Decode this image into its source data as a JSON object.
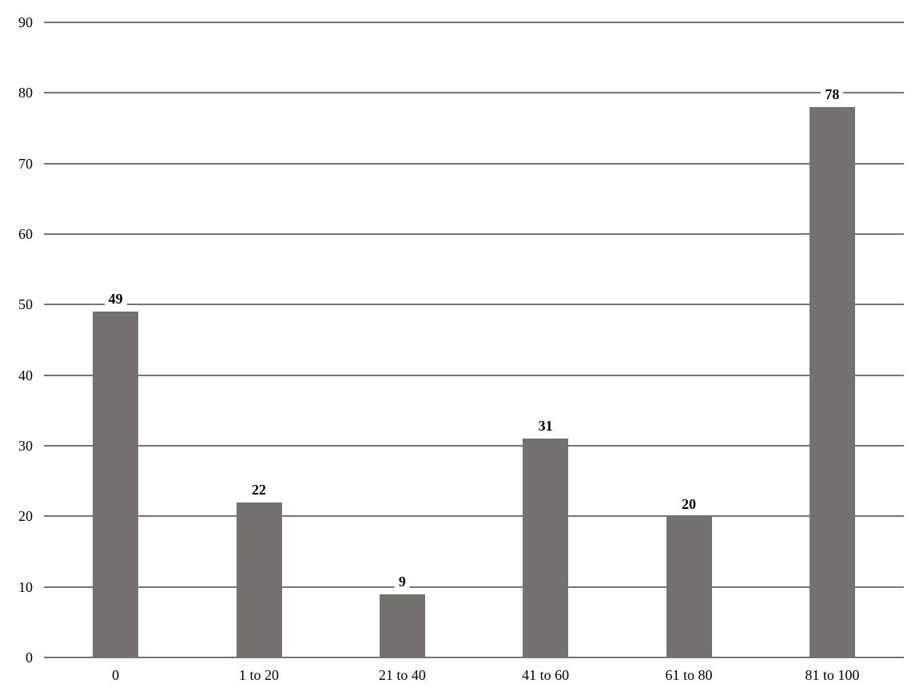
{
  "chart_data": {
    "type": "bar",
    "title": "",
    "xlabel": "",
    "ylabel": "",
    "categories": [
      "0",
      "1 to 20",
      "21 to 40",
      "41 to 60",
      "61 to 80",
      "81 to 100"
    ],
    "values": [
      49,
      22,
      9,
      31,
      20,
      78
    ],
    "value_labels": [
      "49",
      "22",
      "9",
      "31",
      "20",
      "78"
    ],
    "ylim": [
      0,
      90
    ],
    "yticks": [
      0,
      10,
      20,
      30,
      40,
      50,
      60,
      70,
      80,
      90
    ],
    "ytick_labels": [
      "0",
      "10",
      "20",
      "30",
      "40",
      "50",
      "60",
      "70",
      "80",
      "90"
    ],
    "grid": "horizontal",
    "legend": "none",
    "bar_color": "#767171",
    "gridline_color": "#757573",
    "label_color": "#000000",
    "background_color": "#ffffff"
  }
}
